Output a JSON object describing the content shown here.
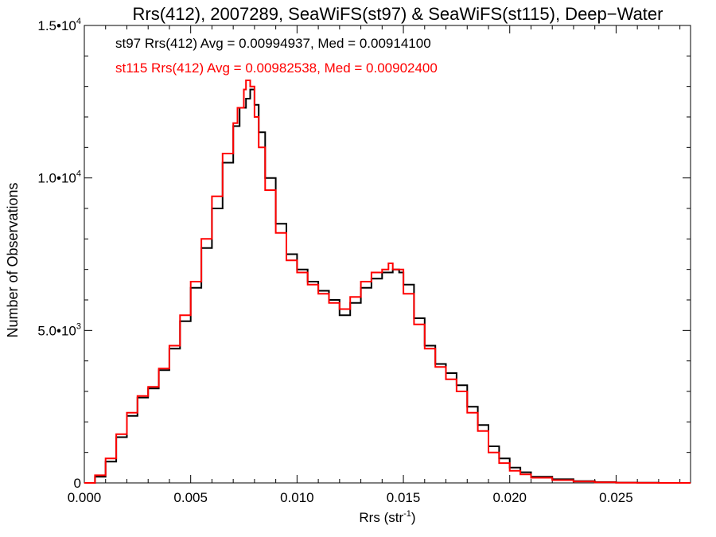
{
  "chart_data": {
    "type": "histogram-step",
    "title": "Rrs(412), 2007289, SeaWiFS(st97) & SeaWiFS(st115), Deep−Water",
    "xlabel_main": "Rrs (str",
    "xlabel_sup": "-1",
    "xlabel_end": ")",
    "ylabel": "Number of Observations",
    "xlim": [
      0.0,
      0.0285
    ],
    "ylim": [
      0,
      15000
    ],
    "x_ticks": [
      {
        "value": 0.0,
        "label": "0.000"
      },
      {
        "value": 0.005,
        "label": "0.005"
      },
      {
        "value": 0.01,
        "label": "0.010"
      },
      {
        "value": 0.015,
        "label": "0.015"
      },
      {
        "value": 0.02,
        "label": "0.020"
      },
      {
        "value": 0.025,
        "label": "0.025"
      }
    ],
    "y_ticks": [
      {
        "value": 0,
        "base": "0",
        "exp": ""
      },
      {
        "value": 5000,
        "base": "5.0•1",
        "mid": "0",
        "exp": "3"
      },
      {
        "value": 10000,
        "base": "1.0•1",
        "mid": "0",
        "exp": "4"
      },
      {
        "value": 15000,
        "base": "1.5•1",
        "mid": "0",
        "exp": "4"
      }
    ],
    "annotations": [
      {
        "text": "st97 Rrs(412) Avg = 0.00994937, Med = 0.00914100",
        "color": "#000000"
      },
      {
        "text": "st115 Rrs(412) Avg = 0.00982538, Med = 0.00902400",
        "color": "#ff0000"
      }
    ],
    "series": [
      {
        "color": "#000000",
        "x": [
          0.0,
          0.0005,
          0.001,
          0.0015,
          0.002,
          0.0025,
          0.003,
          0.0035,
          0.004,
          0.0045,
          0.005,
          0.0055,
          0.006,
          0.0065,
          0.007,
          0.0073,
          0.0076,
          0.0078,
          0.008,
          0.0082,
          0.0085,
          0.009,
          0.0095,
          0.01,
          0.0105,
          0.011,
          0.0115,
          0.012,
          0.0125,
          0.013,
          0.0135,
          0.014,
          0.0145,
          0.0148,
          0.015,
          0.0155,
          0.016,
          0.0165,
          0.017,
          0.0175,
          0.018,
          0.0185,
          0.019,
          0.0195,
          0.02,
          0.0205,
          0.021,
          0.022,
          0.023,
          0.024,
          0.025,
          0.026,
          0.027,
          0.0285
        ],
        "y": [
          0,
          200,
          700,
          1500,
          2200,
          2800,
          3100,
          3700,
          4400,
          5300,
          6400,
          7700,
          9000,
          10500,
          11700,
          12300,
          12600,
          12900,
          12400,
          11500,
          10000,
          8500,
          7500,
          7000,
          6600,
          6300,
          6000,
          5500,
          5900,
          6400,
          6700,
          6900,
          7000,
          6900,
          6500,
          5400,
          4500,
          3900,
          3600,
          3200,
          2500,
          1900,
          1200,
          800,
          500,
          350,
          200,
          120,
          60,
          25,
          10,
          5,
          0,
          0
        ]
      },
      {
        "color": "#ff0000",
        "x": [
          0.0,
          0.0005,
          0.001,
          0.0015,
          0.002,
          0.0025,
          0.003,
          0.0035,
          0.004,
          0.0045,
          0.005,
          0.0055,
          0.006,
          0.0065,
          0.007,
          0.0072,
          0.0075,
          0.0076,
          0.0078,
          0.008,
          0.0082,
          0.0085,
          0.009,
          0.0095,
          0.01,
          0.0105,
          0.011,
          0.0115,
          0.012,
          0.0125,
          0.013,
          0.0135,
          0.014,
          0.0143,
          0.0145,
          0.015,
          0.0155,
          0.016,
          0.0165,
          0.017,
          0.0175,
          0.018,
          0.0185,
          0.019,
          0.0195,
          0.02,
          0.0205,
          0.021,
          0.022,
          0.023,
          0.024,
          0.025,
          0.026,
          0.027,
          0.0285
        ],
        "y": [
          0,
          250,
          800,
          1600,
          2300,
          2850,
          3150,
          3750,
          4500,
          5500,
          6600,
          8000,
          9400,
          10800,
          11800,
          12300,
          12900,
          13200,
          13000,
          12000,
          11000,
          9600,
          8200,
          7300,
          6900,
          6500,
          6200,
          5900,
          5700,
          6100,
          6600,
          6900,
          7000,
          7200,
          7000,
          6200,
          5200,
          4400,
          3800,
          3400,
          3000,
          2300,
          1700,
          1000,
          650,
          400,
          280,
          170,
          90,
          45,
          18,
          8,
          3,
          0,
          0
        ]
      }
    ]
  }
}
